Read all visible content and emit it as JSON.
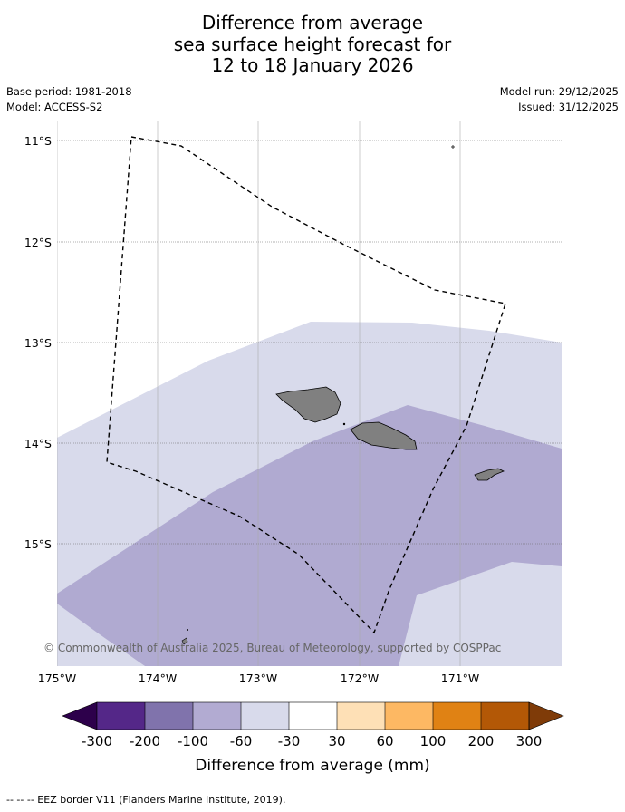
{
  "title": {
    "line1": "Difference from average",
    "line2": "sea surface height forecast for",
    "line3": "12 to 18 January 2026"
  },
  "meta": {
    "base_period": "Base period: 1981-2018",
    "model": "Model: ACCESS-S2",
    "model_run": "Model run: 29/12/2025",
    "issued": "Issued: 31/12/2025"
  },
  "map": {
    "lat_labels": [
      "11°S",
      "12°S",
      "13°S",
      "14°S",
      "15°S"
    ],
    "lon_labels": [
      "175°W",
      "174°W",
      "173°W",
      "172°W",
      "171°W"
    ],
    "copyright": "© Commonwealth of Australia 2025, Bureau of Meteorology, supported by COSPPac",
    "land_color": "#808080",
    "eez_border_style": "dashed"
  },
  "colorbar": {
    "title": "Difference from average (mm)",
    "ticks": [
      "-300",
      "-200",
      "-100",
      "-60",
      "-30",
      "30",
      "60",
      "100",
      "200",
      "300"
    ],
    "colors": [
      "#2d004b",
      "#542788",
      "#8073ac",
      "#b2abd2",
      "#d8daeb",
      "#ffffff",
      "#fee0b6",
      "#fdb863",
      "#e08214",
      "#b35806",
      "#7f3b08"
    ]
  },
  "footer": {
    "legend": "-- -- -- EEZ border V11 (Flanders Marine Institute, 2019)."
  }
}
